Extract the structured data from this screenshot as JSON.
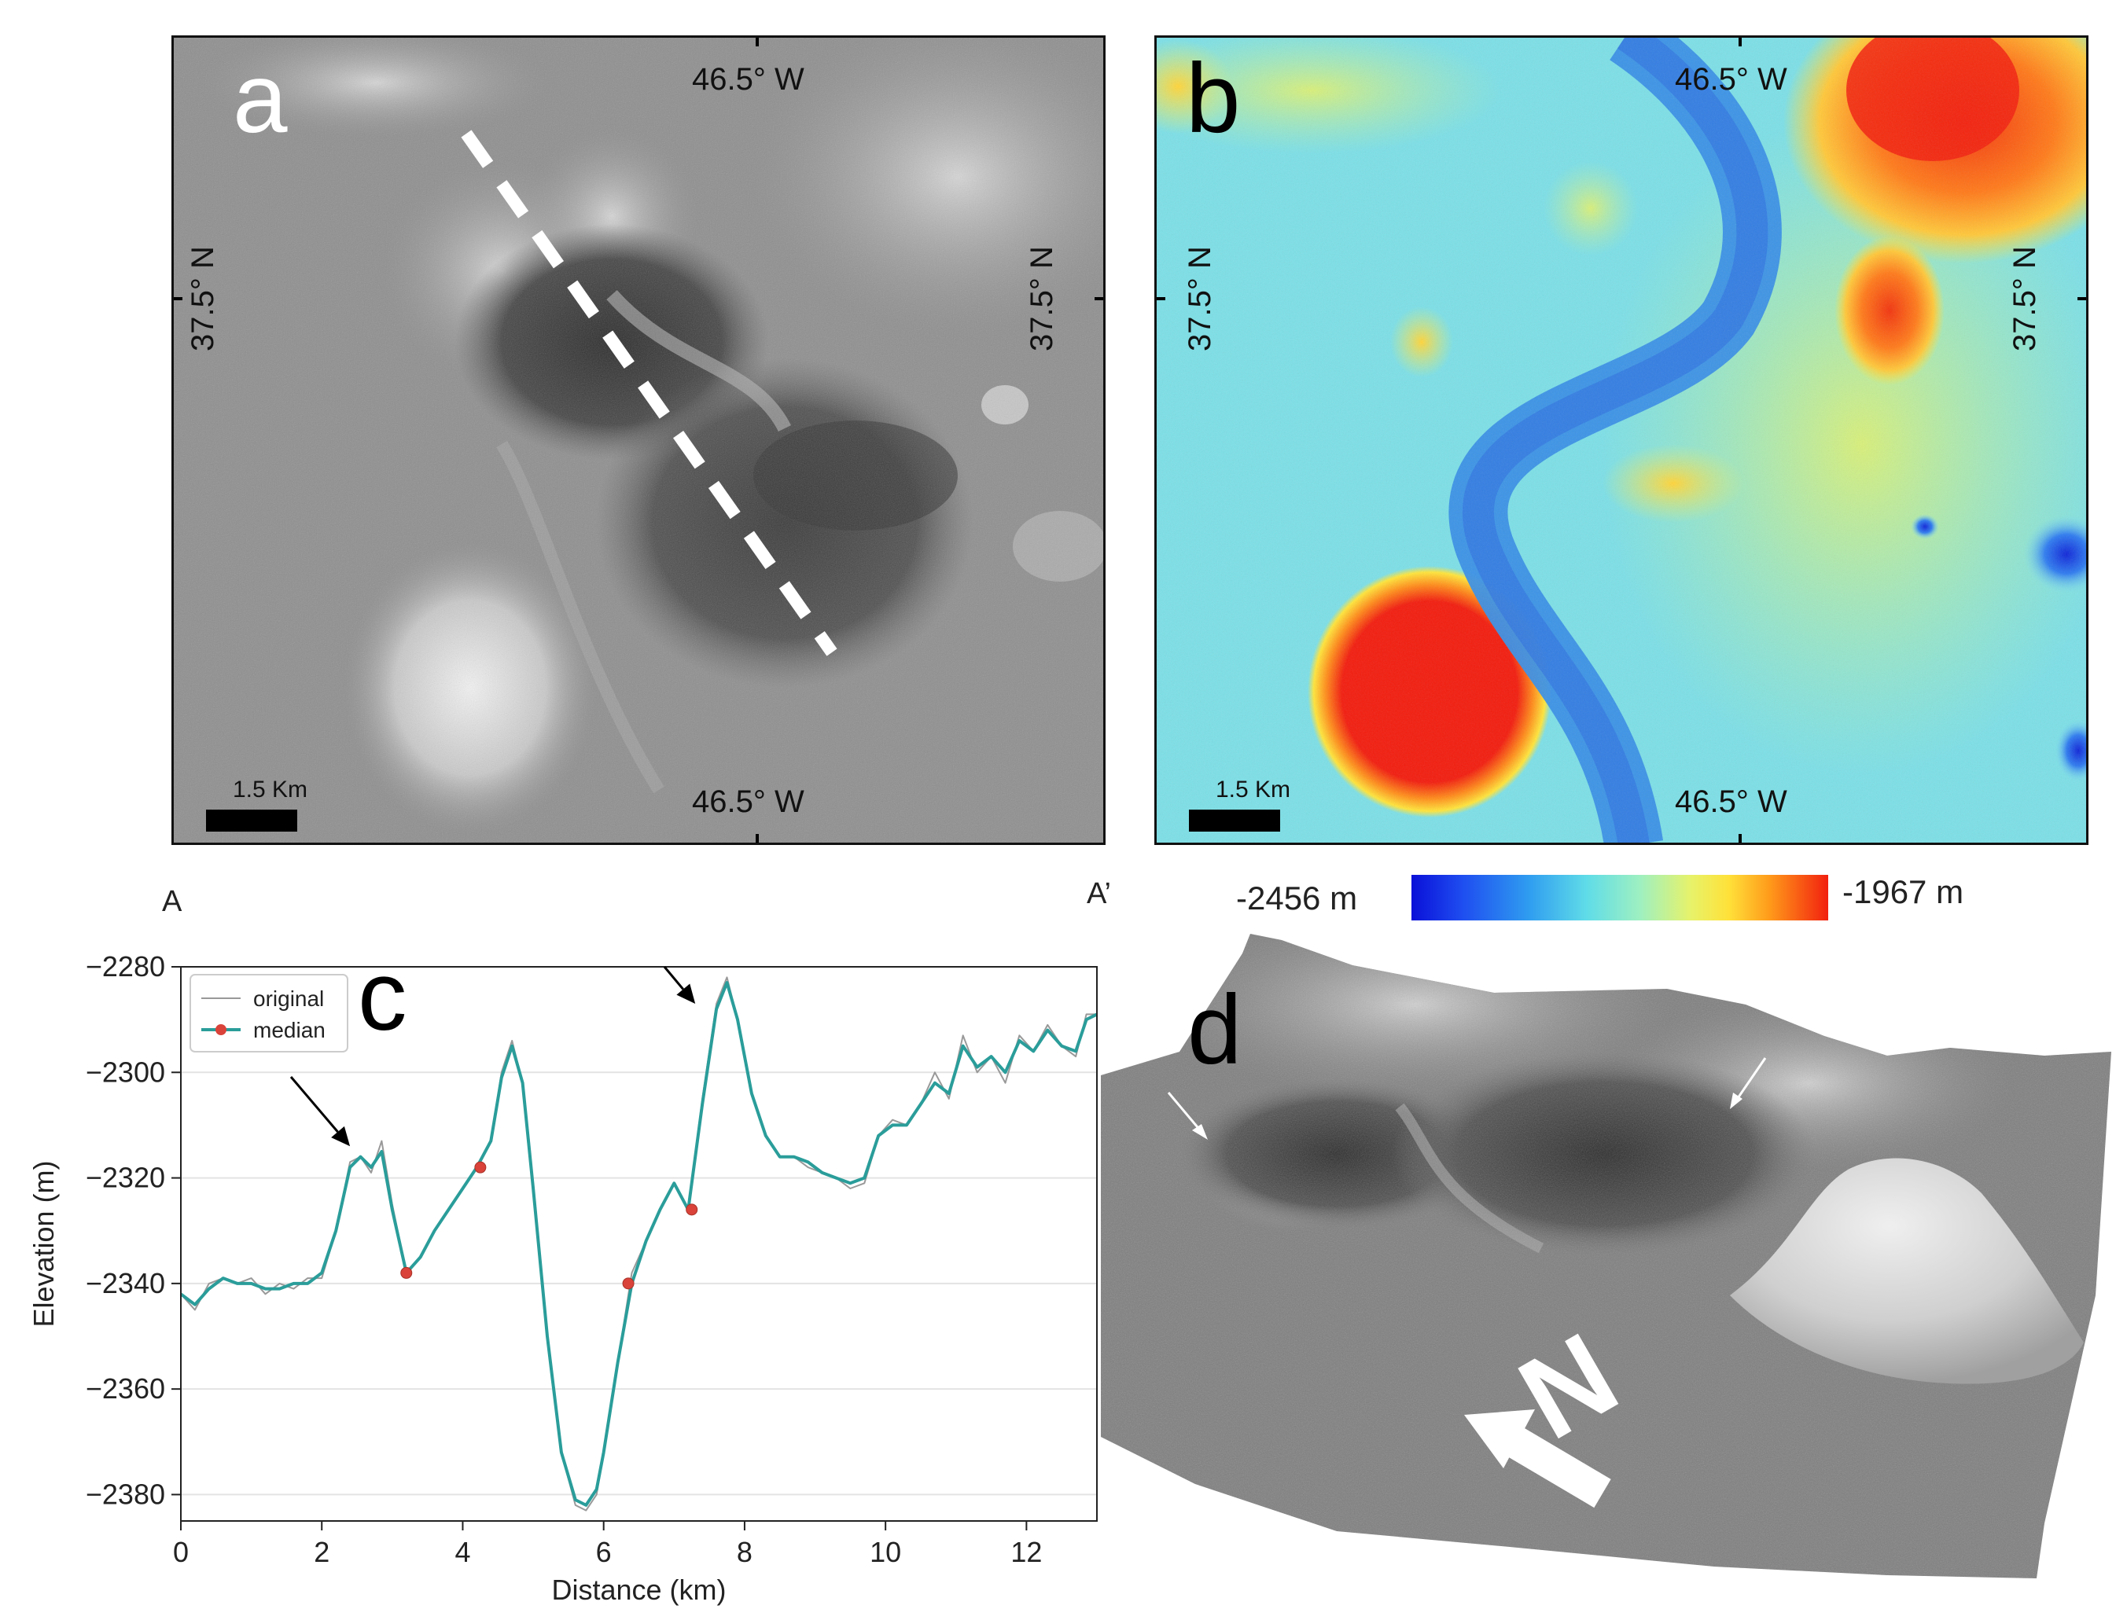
{
  "panels": {
    "a": {
      "letter": "a",
      "lon_top": "46.5° W",
      "lon_bottom": "46.5° W",
      "lat_left": "37.5° N",
      "lat_right": "37.5° N",
      "scale_label": "1.5 Km"
    },
    "b": {
      "letter": "b",
      "lon_top": "46.5° W",
      "lon_bottom": "46.5° W",
      "lat_left": "37.5° N",
      "lat_right": "37.5° N",
      "scale_label": "1.5 Km"
    },
    "d": {
      "letter": "d",
      "north_label": "N"
    }
  },
  "profile_labels": {
    "start": "A",
    "end": "A’"
  },
  "colorbar": {
    "min_label": "-2456 m",
    "max_label": "-1967 m"
  },
  "colors": {
    "profile_line": "#2a9d9a",
    "original_line": "#999999",
    "median_marker": "#d9433a"
  },
  "chart_data": {
    "type": "line",
    "panel_letter": "c",
    "xlabel": "Distance (km)",
    "ylabel": "Elevation (m)",
    "xlim": [
      0,
      13
    ],
    "ylim": [
      -2385,
      -2280
    ],
    "xticks": [
      0,
      2,
      4,
      6,
      8,
      10,
      12
    ],
    "yticks": [
      -2280,
      -2300,
      -2320,
      -2340,
      -2360,
      -2380
    ],
    "xtick_labels": [
      "0",
      "2",
      "4",
      "6",
      "8",
      "10",
      "12"
    ],
    "ytick_labels": [
      "−2280",
      "−2300",
      "−2320",
      "−2340",
      "−2360",
      "−2380"
    ],
    "grid": "horizontal",
    "legend_position": "top-left",
    "series": [
      {
        "name": "original",
        "x": [
          0,
          0.2,
          0.4,
          0.6,
          0.8,
          1.0,
          1.2,
          1.4,
          1.6,
          1.8,
          2.0,
          2.2,
          2.4,
          2.55,
          2.7,
          2.85,
          3.0,
          3.2,
          3.4,
          3.6,
          3.8,
          4.0,
          4.2,
          4.4,
          4.55,
          4.7,
          4.85,
          5.0,
          5.2,
          5.4,
          5.6,
          5.75,
          5.9,
          6.0,
          6.2,
          6.4,
          6.6,
          6.8,
          7.0,
          7.2,
          7.4,
          7.6,
          7.75,
          7.9,
          8.1,
          8.3,
          8.5,
          8.7,
          8.9,
          9.1,
          9.3,
          9.5,
          9.7,
          9.9,
          10.1,
          10.3,
          10.5,
          10.7,
          10.9,
          11.1,
          11.3,
          11.5,
          11.7,
          11.9,
          12.1,
          12.3,
          12.5,
          12.7,
          12.85,
          13.0
        ],
        "y": [
          -2342,
          -2345,
          -2340,
          -2339,
          -2340,
          -2339,
          -2342,
          -2340,
          -2341,
          -2339,
          -2339,
          -2330,
          -2317,
          -2316,
          -2319,
          -2313,
          -2325,
          -2338,
          -2335,
          -2330,
          -2326,
          -2322,
          -2318,
          -2313,
          -2300,
          -2294,
          -2302,
          -2322,
          -2350,
          -2372,
          -2382,
          -2383,
          -2380,
          -2372,
          -2355,
          -2338,
          -2332,
          -2326,
          -2321,
          -2326,
          -2305,
          -2287,
          -2282,
          -2290,
          -2304,
          -2312,
          -2316,
          -2316,
          -2318,
          -2319,
          -2320,
          -2322,
          -2321,
          -2312,
          -2309,
          -2310,
          -2306,
          -2300,
          -2305,
          -2293,
          -2300,
          -2297,
          -2302,
          -2293,
          -2296,
          -2291,
          -2295,
          -2297,
          -2289,
          -2289
        ]
      },
      {
        "name": "median",
        "x": [
          0,
          0.2,
          0.4,
          0.6,
          0.8,
          1.0,
          1.2,
          1.4,
          1.6,
          1.8,
          2.0,
          2.2,
          2.4,
          2.55,
          2.7,
          2.85,
          3.0,
          3.2,
          3.4,
          3.6,
          3.8,
          4.0,
          4.2,
          4.4,
          4.55,
          4.7,
          4.85,
          5.0,
          5.2,
          5.4,
          5.6,
          5.75,
          5.9,
          6.0,
          6.2,
          6.4,
          6.6,
          6.8,
          7.0,
          7.2,
          7.4,
          7.6,
          7.75,
          7.9,
          8.1,
          8.3,
          8.5,
          8.7,
          8.9,
          9.1,
          9.3,
          9.5,
          9.7,
          9.9,
          10.1,
          10.3,
          10.5,
          10.7,
          10.9,
          11.1,
          11.3,
          11.5,
          11.7,
          11.9,
          12.1,
          12.3,
          12.5,
          12.7,
          12.85,
          13.0
        ],
        "y": [
          -2342,
          -2344,
          -2341,
          -2339,
          -2340,
          -2340,
          -2341,
          -2341,
          -2340,
          -2340,
          -2338,
          -2330,
          -2318,
          -2316,
          -2318,
          -2315,
          -2326,
          -2338,
          -2335,
          -2330,
          -2326,
          -2322,
          -2318,
          -2313,
          -2301,
          -2295,
          -2302,
          -2322,
          -2350,
          -2372,
          -2381,
          -2382,
          -2379,
          -2372,
          -2355,
          -2340,
          -2332,
          -2326,
          -2321,
          -2326,
          -2306,
          -2288,
          -2283,
          -2290,
          -2304,
          -2312,
          -2316,
          -2316,
          -2317,
          -2319,
          -2320,
          -2321,
          -2320,
          -2312,
          -2310,
          -2310,
          -2306,
          -2302,
          -2304,
          -2295,
          -2299,
          -2297,
          -2300,
          -2294,
          -2296,
          -2292,
          -2295,
          -2296,
          -2290,
          -2289
        ],
        "markers": [
          {
            "x": 3.2,
            "y": -2338
          },
          {
            "x": 4.25,
            "y": -2318
          },
          {
            "x": 6.35,
            "y": -2340
          },
          {
            "x": 7.25,
            "y": -2326
          }
        ]
      }
    ],
    "annotations": [
      {
        "type": "arrow",
        "target": {
          "x": 2.4,
          "y": -2314
        }
      },
      {
        "type": "arrow",
        "target": {
          "x": 7.3,
          "y": -2287
        }
      }
    ]
  }
}
